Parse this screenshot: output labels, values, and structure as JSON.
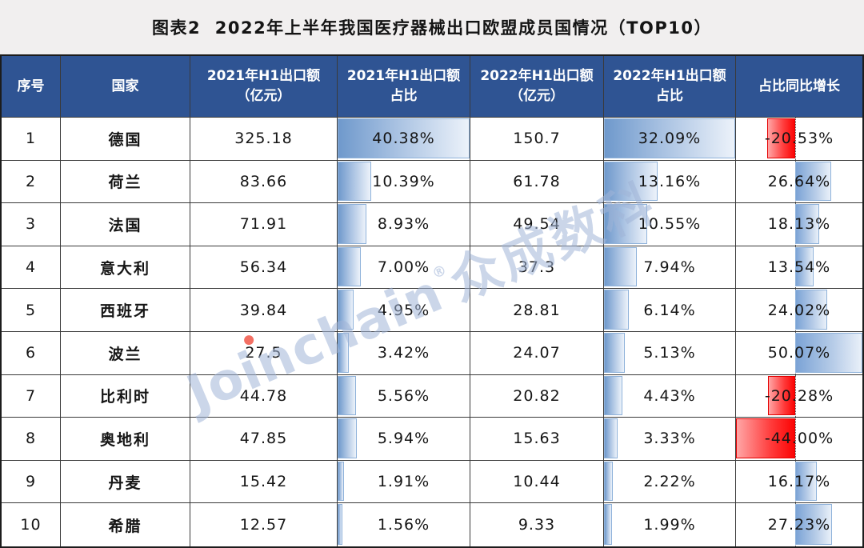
{
  "title": "图表2  2022年上半年我国医疗器械出口欧盟成员国情况（TOP10）",
  "watermark": {
    "brand": "Joinchain",
    "reg": "®",
    "cn": "众成数科"
  },
  "table": {
    "headers": [
      "序号",
      "国家",
      "2021年H1出口额（亿元）",
      "2021年H1出口额占比",
      "2022年H1出口额（亿元）",
      "2022年H1出口额占比",
      "占比同比增长"
    ],
    "rows": [
      {
        "no": "1",
        "country": "德国",
        "amt2021": "325.18",
        "share2021": "40.38%",
        "amt2022": "150.7",
        "share2022": "32.09%",
        "growth": "-20.53%"
      },
      {
        "no": "2",
        "country": "荷兰",
        "amt2021": "83.66",
        "share2021": "10.39%",
        "amt2022": "61.78",
        "share2022": "13.16%",
        "growth": "26.64%"
      },
      {
        "no": "3",
        "country": "法国",
        "amt2021": "71.91",
        "share2021": "8.93%",
        "amt2022": "49.54",
        "share2022": "10.55%",
        "growth": "18.13%"
      },
      {
        "no": "4",
        "country": "意大利",
        "amt2021": "56.34",
        "share2021": "7.00%",
        "amt2022": "37.3",
        "share2022": "7.94%",
        "growth": "13.54%"
      },
      {
        "no": "5",
        "country": "西班牙",
        "amt2021": "39.84",
        "share2021": "4.95%",
        "amt2022": "28.81",
        "share2022": "6.14%",
        "growth": "24.02%"
      },
      {
        "no": "6",
        "country": "波兰",
        "amt2021": "27.5",
        "share2021": "3.42%",
        "amt2022": "24.07",
        "share2022": "5.13%",
        "growth": "50.07%"
      },
      {
        "no": "7",
        "country": "比利时",
        "amt2021": "44.78",
        "share2021": "5.56%",
        "amt2022": "20.82",
        "share2022": "4.43%",
        "growth": "-20.28%"
      },
      {
        "no": "8",
        "country": "奥地利",
        "amt2021": "47.85",
        "share2021": "5.94%",
        "amt2022": "15.63",
        "share2022": "3.33%",
        "growth": "-44.00%"
      },
      {
        "no": "9",
        "country": "丹麦",
        "amt2021": "15.42",
        "share2021": "1.91%",
        "amt2022": "10.44",
        "share2022": "2.22%",
        "growth": "16.17%"
      },
      {
        "no": "10",
        "country": "希腊",
        "amt2021": "12.57",
        "share2021": "1.56%",
        "amt2022": "9.33",
        "share2022": "1.99%",
        "growth": "27.23%"
      }
    ]
  },
  "chart_data": {
    "type": "table",
    "title": "图表2 2022年上半年我国医疗器械出口欧盟成员国情况（TOP10）",
    "columns": [
      "序号",
      "国家",
      "2021年H1出口额（亿元）",
      "2021年H1出口额占比",
      "2022年H1出口额（亿元）",
      "2022年H1出口额占比",
      "占比同比增长"
    ],
    "categories": [
      "德国",
      "荷兰",
      "法国",
      "意大利",
      "西班牙",
      "波兰",
      "比利时",
      "奥地利",
      "丹麦",
      "希腊"
    ],
    "series": [
      {
        "name": "2021年H1出口额（亿元）",
        "values": [
          325.18,
          83.66,
          71.91,
          56.34,
          39.84,
          27.5,
          44.78,
          47.85,
          15.42,
          12.57
        ]
      },
      {
        "name": "2021年H1出口额占比(%)",
        "values": [
          40.38,
          10.39,
          8.93,
          7.0,
          4.95,
          3.42,
          5.56,
          5.94,
          1.91,
          1.56
        ],
        "databar": "blue-gradient"
      },
      {
        "name": "2022年H1出口额（亿元）",
        "values": [
          150.7,
          61.78,
          49.54,
          37.3,
          28.81,
          24.07,
          20.82,
          15.63,
          10.44,
          9.33
        ]
      },
      {
        "name": "2022年H1出口额占比(%)",
        "values": [
          32.09,
          13.16,
          10.55,
          7.94,
          6.14,
          5.13,
          4.43,
          3.33,
          2.22,
          1.99
        ],
        "databar": "blue-gradient"
      },
      {
        "name": "占比同比增长(%)",
        "values": [
          -20.53,
          26.64,
          18.13,
          13.54,
          24.02,
          50.07,
          -20.28,
          -44.0,
          16.17,
          27.23
        ],
        "databar": "blue-positive-red-negative-with-axis"
      }
    ],
    "layout": {
      "databar_axis_from_min_max": true,
      "grid": true,
      "legend": "none"
    }
  },
  "colors": {
    "header_bg": "#2f5493",
    "header_text": "#ffffff",
    "grid_line": "#3a3a3a",
    "bar_blue_dark": "#6f99cc",
    "bar_blue_light": "#ecf2fa",
    "bar_blue_border": "#8fb2da",
    "bar_red_dark": "#fb0404",
    "bar_red_light": "#ffa6a6",
    "bar_red_border": "#e30000",
    "watermark": "#a0b4d7",
    "page_bg": "#f1efef"
  }
}
